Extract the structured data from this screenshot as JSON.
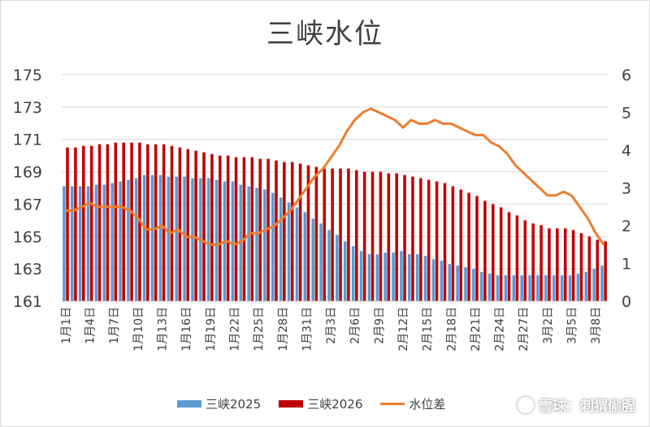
{
  "chart_data": {
    "type": "bar",
    "title": "三峡水位",
    "categories": [
      "1月1日",
      "1月2日",
      "1月3日",
      "1月4日",
      "1月5日",
      "1月6日",
      "1月7日",
      "1月8日",
      "1月9日",
      "1月10日",
      "1月11日",
      "1月12日",
      "1月13日",
      "1月14日",
      "1月15日",
      "1月16日",
      "1月17日",
      "1月18日",
      "1月19日",
      "1月20日",
      "1月21日",
      "1月22日",
      "1月23日",
      "1月24日",
      "1月25日",
      "1月26日",
      "1月27日",
      "1月28日",
      "1月29日",
      "1月30日",
      "1月31日",
      "2月1日",
      "2月2日",
      "2月3日",
      "2月4日",
      "2月5日",
      "2月6日",
      "2月7日",
      "2月8日",
      "2月9日",
      "2月10日",
      "2月11日",
      "2月12日",
      "2月13日",
      "2月14日",
      "2月15日",
      "2月16日",
      "2月17日",
      "2月18日",
      "2月19日",
      "2月20日",
      "2月21日",
      "2月22日",
      "2月23日",
      "2月24日",
      "2月25日",
      "2月26日",
      "2月27日",
      "2月28日",
      "3月1日",
      "3月2日",
      "3月3日",
      "3月4日",
      "3月5日",
      "3月6日",
      "3月7日",
      "3月8日",
      "3月9日"
    ],
    "x_tick_labels_shown": [
      "1月1日",
      "1月4日",
      "1月7日",
      "1月10日",
      "1月13日",
      "1月16日",
      "1月19日",
      "1月22日",
      "1月25日",
      "1月28日",
      "1月31日",
      "2月3日",
      "2月6日",
      "2月9日",
      "2月12日",
      "2月15日",
      "2月18日",
      "2月21日",
      "2月24日",
      "2月27日",
      "3月2日",
      "3月5日",
      "3月8日"
    ],
    "y_left_ticks": [
      161,
      163,
      165,
      167,
      169,
      171,
      173,
      175
    ],
    "y_left_range": [
      161,
      175
    ],
    "y_right_ticks": [
      0,
      1,
      2,
      3,
      4,
      5,
      6
    ],
    "y_right_range": [
      0,
      6
    ],
    "grid": true,
    "legend_position": "bottom",
    "series": [
      {
        "name": "三峡2025",
        "kind": "bar",
        "axis": "left",
        "color": "#5b9bd5",
        "values": [
          168.1,
          168.1,
          168.1,
          168.1,
          168.2,
          168.2,
          168.3,
          168.4,
          168.5,
          168.6,
          168.8,
          168.8,
          168.8,
          168.7,
          168.7,
          168.7,
          168.6,
          168.6,
          168.6,
          168.5,
          168.4,
          168.4,
          168.2,
          168.1,
          168.0,
          167.9,
          167.7,
          167.4,
          167.1,
          166.8,
          166.5,
          166.1,
          165.8,
          165.4,
          165.1,
          164.7,
          164.4,
          164.1,
          163.9,
          163.9,
          164.0,
          164.0,
          164.1,
          163.9,
          163.9,
          163.8,
          163.6,
          163.5,
          163.3,
          163.2,
          163.1,
          163.0,
          162.8,
          162.7,
          162.6,
          162.6,
          162.6,
          162.6,
          162.6,
          162.6,
          162.6,
          162.6,
          162.6,
          162.6,
          162.7,
          162.8,
          163.0,
          163.2
        ]
      },
      {
        "name": "三峡2026",
        "kind": "bar",
        "axis": "left",
        "color": "#c00000",
        "values": [
          170.5,
          170.5,
          170.6,
          170.6,
          170.7,
          170.7,
          170.8,
          170.8,
          170.8,
          170.8,
          170.7,
          170.7,
          170.7,
          170.6,
          170.5,
          170.4,
          170.3,
          170.2,
          170.1,
          170.0,
          170.0,
          169.9,
          169.9,
          169.9,
          169.8,
          169.8,
          169.7,
          169.6,
          169.6,
          169.5,
          169.4,
          169.3,
          169.2,
          169.2,
          169.2,
          169.2,
          169.1,
          169.0,
          169.0,
          169.0,
          168.9,
          168.9,
          168.8,
          168.7,
          168.6,
          168.5,
          168.4,
          168.3,
          168.1,
          167.9,
          167.7,
          167.5,
          167.2,
          167.0,
          166.8,
          166.5,
          166.3,
          166.0,
          165.8,
          165.7,
          165.5,
          165.5,
          165.5,
          165.4,
          165.2,
          165.0,
          164.8,
          164.7
        ]
      },
      {
        "name": "水位差",
        "kind": "line",
        "axis": "right",
        "color": "#ed7d31",
        "values": [
          2.4,
          2.4,
          2.5,
          2.6,
          2.5,
          2.5,
          2.5,
          2.5,
          2.4,
          2.2,
          1.9,
          1.9,
          2.0,
          1.8,
          1.9,
          1.7,
          1.7,
          1.6,
          1.5,
          1.5,
          1.6,
          1.5,
          1.6,
          1.8,
          1.8,
          1.9,
          2.0,
          2.2,
          2.4,
          2.7,
          3.0,
          3.3,
          3.5,
          3.8,
          4.1,
          4.5,
          4.8,
          5.0,
          5.1,
          5.0,
          4.9,
          4.8,
          4.6,
          4.8,
          4.7,
          4.7,
          4.8,
          4.7,
          4.7,
          4.6,
          4.5,
          4.4,
          4.4,
          4.2,
          4.1,
          3.9,
          3.6,
          3.4,
          3.2,
          3.0,
          2.8,
          2.8,
          2.9,
          2.8,
          2.5,
          2.2,
          1.8,
          1.5
        ]
      }
    ]
  },
  "watermark": {
    "text": "雪球：刺猬偷腥"
  }
}
